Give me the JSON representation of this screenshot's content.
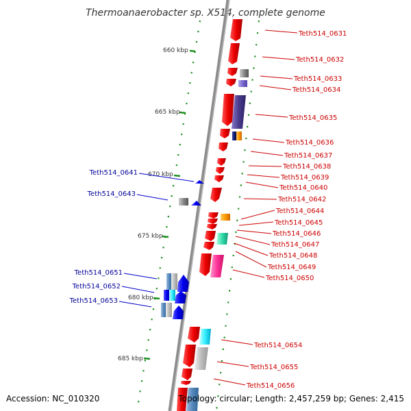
{
  "title": "Thermoanaerobacter sp. X514, complete genome",
  "footer": {
    "accession": "Accession: NC_010320",
    "topology": "Topology: circular; Length: 2,457,259 bp; Genes: 2,415"
  },
  "kbp_labels": [
    "660 kbp",
    "665 kbp",
    "670 kbp",
    "675 kbp",
    "680 kbp",
    "685 kbp"
  ],
  "genes_right": [
    "Teth514_0631",
    "Teth514_0632",
    "Teth514_0633",
    "Teth514_0634",
    "Teth514_0635",
    "Teth514_0636",
    "Teth514_0637",
    "Teth514_0638",
    "Teth514_0639",
    "Teth514_0640",
    "Teth514_0642",
    "Teth514_0644",
    "Teth514_0645",
    "Teth514_0646",
    "Teth514_0647",
    "Teth514_0648",
    "Teth514_0649",
    "Teth514_0650",
    "Teth514_0654",
    "Teth514_0655",
    "Teth514_0656"
  ],
  "genes_left": [
    "Teth514_0641",
    "Teth514_0643",
    "Teth514_0651",
    "Teth514_0652",
    "Teth514_0653"
  ],
  "colors": {
    "forward": "#ff0000",
    "reverse": "#0000ff",
    "label_forward": "#cc0000",
    "label_reverse": "#000099",
    "backbone": "#8c8c8c",
    "ticks": "#1f8f1f"
  }
}
